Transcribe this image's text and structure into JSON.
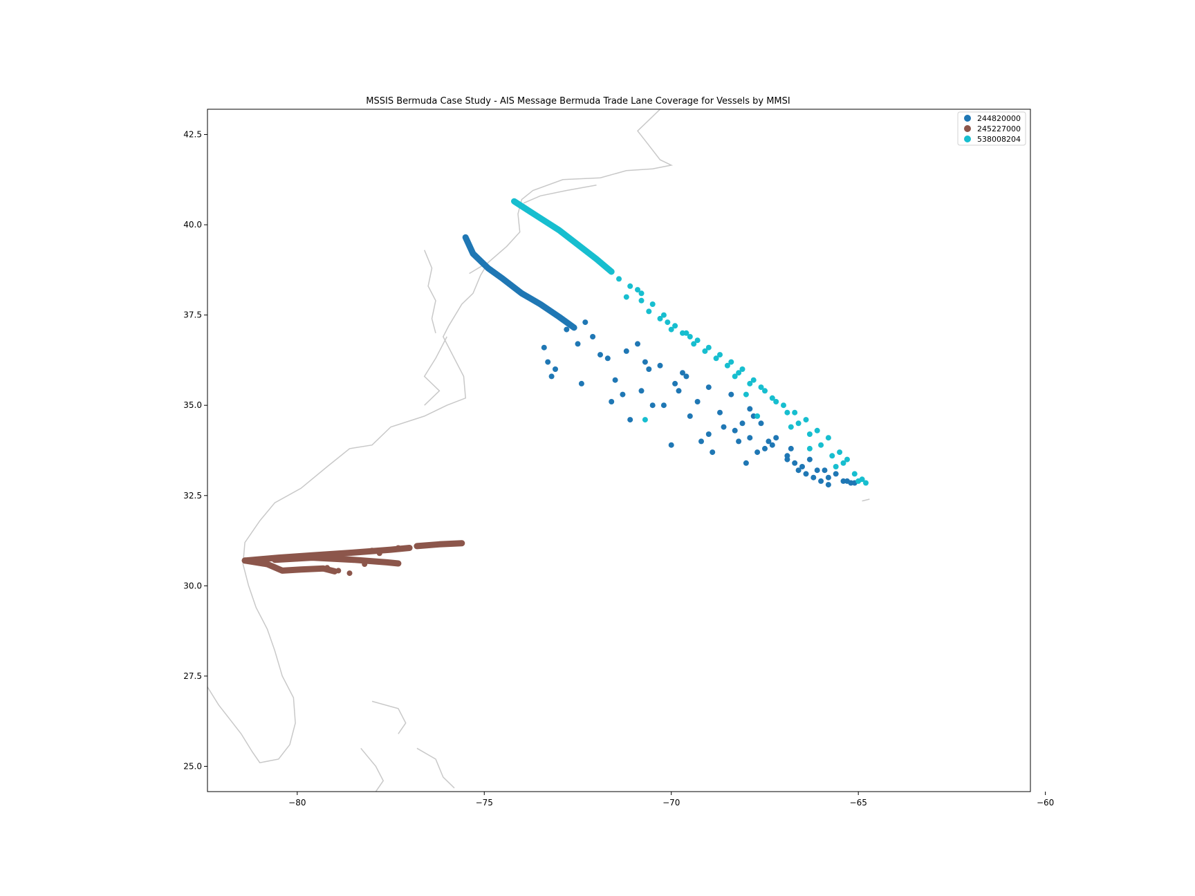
{
  "chart_data": {
    "type": "scatter",
    "title": "MSSIS Bermuda Case Study - AIS Message Bermuda Trade Lane Coverage for Vessels by MMSI",
    "xlabel": "",
    "ylabel": "",
    "xlim": [
      -82.4,
      -60.4
    ],
    "ylim": [
      24.3,
      43.2
    ],
    "x_ticks": [
      -80,
      -75,
      -70,
      -65,
      -60
    ],
    "x_tick_labels": [
      "−80",
      "−75",
      "−70",
      "−65",
      "−60"
    ],
    "y_ticks": [
      25.0,
      27.5,
      30.0,
      32.5,
      35.0,
      37.5,
      40.0,
      42.5
    ],
    "y_tick_labels": [
      "25.0",
      "27.5",
      "30.0",
      "32.5",
      "35.0",
      "37.5",
      "40.0",
      "42.5"
    ],
    "grid": false,
    "legend_position": "top-right",
    "coastline_color": "#c8c8c8",
    "series": [
      {
        "name": "244820000",
        "color": "#1f77b4",
        "track": [
          [
            -75.5,
            39.65
          ],
          [
            -75.3,
            39.2
          ],
          [
            -74.9,
            38.8
          ],
          [
            -74.5,
            38.5
          ],
          [
            -74.0,
            38.1
          ],
          [
            -73.5,
            37.8
          ],
          [
            -73.0,
            37.45
          ],
          [
            -72.6,
            37.15
          ]
        ],
        "x": [
          -73.4,
          -72.1,
          -71.7,
          -71.2,
          -70.3,
          -69.6,
          -69.0,
          -68.4,
          -67.9,
          -67.6,
          -67.2,
          -66.8,
          -66.3,
          -65.9,
          -65.6,
          -65.3,
          -65.1,
          -70.9,
          -70.6,
          -69.9,
          -69.3,
          -68.7,
          -68.1,
          -67.4,
          -66.9,
          -66.5,
          -66.2,
          -65.8,
          -72.3,
          -73.2,
          -71.9,
          -71.5,
          -70.8,
          -70.2,
          -69.5,
          -69.0,
          -68.2,
          -67.7,
          -66.7,
          -66.4,
          -72.8,
          -73.1,
          -72.5,
          -72.4,
          -70.5,
          -69.8,
          -68.6,
          -67.9,
          -67.3,
          -66.9,
          -66.1,
          -65.8,
          -65.4,
          -73.3,
          -71.6,
          -71.1,
          -70.0,
          -69.7,
          -68.9,
          -68.3,
          -67.5,
          -66.6,
          -66.0,
          -65.2,
          -71.3,
          -70.7,
          -69.2,
          -68.0,
          -67.8
        ],
        "y": [
          36.6,
          36.9,
          36.3,
          36.5,
          36.1,
          35.8,
          35.5,
          35.3,
          34.9,
          34.5,
          34.1,
          33.8,
          33.5,
          33.2,
          33.1,
          32.9,
          32.85,
          36.7,
          36.0,
          35.6,
          35.1,
          34.8,
          34.5,
          34.0,
          33.6,
          33.3,
          33.0,
          32.8,
          37.3,
          35.8,
          36.4,
          35.7,
          35.4,
          35.0,
          34.7,
          34.2,
          34.0,
          33.7,
          33.4,
          33.1,
          37.1,
          36.0,
          36.7,
          35.6,
          35.0,
          35.4,
          34.4,
          34.1,
          33.9,
          33.5,
          33.2,
          33.0,
          32.9,
          36.2,
          35.1,
          34.6,
          33.9,
          35.9,
          33.7,
          34.3,
          33.8,
          33.2,
          32.9,
          32.85,
          35.3,
          36.2,
          34.0,
          33.4,
          34.7
        ]
      },
      {
        "name": "245227000",
        "color": "#8c564b",
        "tracks": [
          [
            [
              -81.4,
              30.7
            ],
            [
              -80.5,
              30.78
            ],
            [
              -79.5,
              30.85
            ],
            [
              -78.5,
              30.92
            ],
            [
              -77.5,
              31.0
            ],
            [
              -77.0,
              31.05
            ]
          ],
          [
            [
              -81.4,
              30.7
            ],
            [
              -80.8,
              30.6
            ],
            [
              -80.4,
              30.42
            ],
            [
              -79.9,
              30.45
            ],
            [
              -79.3,
              30.48
            ],
            [
              -79.0,
              30.4
            ]
          ],
          [
            [
              -80.6,
              30.72
            ],
            [
              -79.6,
              30.78
            ],
            [
              -78.5,
              30.72
            ],
            [
              -77.6,
              30.65
            ],
            [
              -77.3,
              30.62
            ]
          ],
          [
            [
              -76.8,
              31.1
            ],
            [
              -76.2,
              31.15
            ],
            [
              -75.6,
              31.18
            ]
          ]
        ],
        "x": [
          -78.6,
          -78.9,
          -79.2,
          -77.8,
          -78.2,
          -76.5,
          -79.6,
          -80.0,
          -77.3,
          -78.0
        ],
        "y": [
          30.35,
          30.42,
          30.5,
          30.9,
          30.6,
          31.12,
          30.8,
          30.75,
          31.05,
          30.98
        ]
      },
      {
        "name": "538008204",
        "color": "#17becf",
        "track": [
          [
            -74.2,
            40.65
          ],
          [
            -73.6,
            40.25
          ],
          [
            -73.0,
            39.85
          ],
          [
            -72.5,
            39.45
          ],
          [
            -72.0,
            39.05
          ],
          [
            -71.6,
            38.7
          ]
        ],
        "x": [
          -71.4,
          -71.1,
          -70.8,
          -70.5,
          -70.2,
          -69.9,
          -69.6,
          -69.3,
          -69.0,
          -68.7,
          -68.4,
          -68.1,
          -67.8,
          -67.5,
          -67.2,
          -66.9,
          -66.6,
          -66.3,
          -66.0,
          -65.7,
          -65.4,
          -65.1,
          -64.9,
          -64.8,
          -71.2,
          -70.6,
          -70.0,
          -69.4,
          -68.8,
          -68.2,
          -67.6,
          -67.0,
          -66.4,
          -65.8,
          -65.3,
          -70.9,
          -70.3,
          -69.7,
          -69.1,
          -68.5,
          -67.9,
          -67.3,
          -66.7,
          -66.1,
          -65.5,
          -70.8,
          -70.1,
          -68.0,
          -67.7,
          -66.3,
          -70.7,
          -69.5,
          -68.3,
          -66.8,
          -65.6,
          -65.0
        ],
        "y": [
          38.5,
          38.3,
          38.1,
          37.8,
          37.5,
          37.2,
          37.0,
          36.8,
          36.6,
          36.4,
          36.2,
          36.0,
          35.7,
          35.4,
          35.1,
          34.8,
          34.5,
          34.2,
          33.9,
          33.6,
          33.4,
          33.1,
          32.95,
          32.85,
          38.0,
          37.6,
          37.1,
          36.7,
          36.3,
          35.9,
          35.5,
          35.0,
          34.6,
          34.1,
          33.5,
          38.2,
          37.4,
          37.0,
          36.5,
          36.1,
          35.6,
          35.2,
          34.8,
          34.3,
          33.7,
          37.9,
          37.3,
          35.3,
          34.7,
          33.8,
          34.6,
          36.9,
          35.8,
          34.4,
          33.3,
          32.9
        ]
      }
    ]
  }
}
